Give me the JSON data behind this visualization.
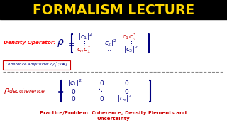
{
  "bg_color": "#000000",
  "title_text": "FORMALISM LECTURE",
  "title_color": "#FFD700",
  "main_bg": "#FFFFFF",
  "density_label_color": "#FF0000",
  "rho_color": "#000080",
  "red_color": "#CC0000",
  "blue_color": "#000080",
  "divider_color": "#888888",
  "practice_text1": "Practice/Problem: Coherence, Density Elements and",
  "practice_text2": "Uncertainty",
  "practice_color": "#CC0000"
}
